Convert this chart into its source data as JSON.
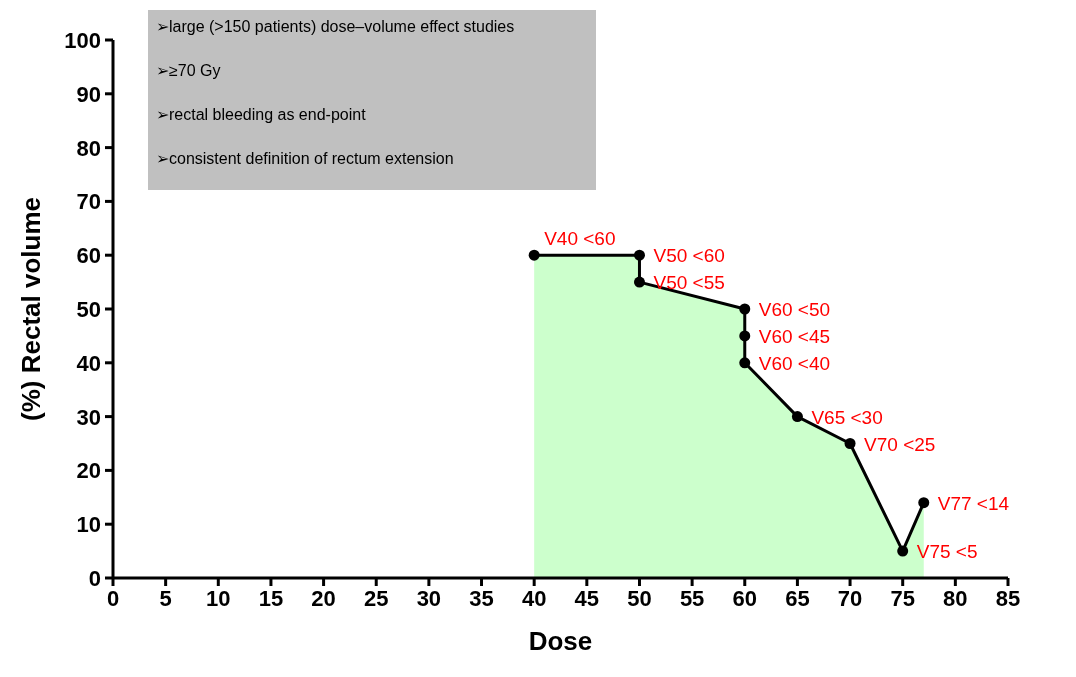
{
  "chart_data": {
    "type": "area",
    "xlabel": "Dose",
    "ylabel": "(%) Rectal volume",
    "xlim": [
      0,
      85
    ],
    "xticks": [
      0,
      5,
      10,
      15,
      20,
      25,
      30,
      35,
      40,
      45,
      50,
      55,
      60,
      65,
      70,
      75,
      80,
      85
    ],
    "ylim": [
      0,
      100
    ],
    "yticks": [
      0,
      10,
      20,
      30,
      40,
      50,
      60,
      70,
      80,
      90,
      100
    ],
    "x": [
      40,
      50,
      50,
      60,
      60,
      60,
      65,
      70,
      75,
      77
    ],
    "series": [
      {
        "color": "#ccffcc",
        "marker": "circle",
        "values": [
          60,
          60,
          55,
          50,
          45,
          40,
          30,
          25,
          5,
          14
        ]
      }
    ],
    "annotations": [
      "➢large (>150 patients) dose–volume effect studies",
      "➢≥70 Gy",
      "➢rectal bleeding as end-point",
      "➢consistent definition of rectum extension",
      {
        "text": "V40 <60",
        "x": 40,
        "y": 60
      },
      {
        "text": "V50 <60",
        "x": 50,
        "y": 60
      },
      {
        "text": "V50 <55",
        "x": 50,
        "y": 55
      },
      {
        "text": "V60 <50",
        "x": 60,
        "y": 50
      },
      {
        "text": "V60 <45",
        "x": 60,
        "y": 45
      },
      {
        "text": "V60 <40",
        "x": 60,
        "y": 40
      },
      {
        "text": "V65 <30",
        "x": 65,
        "y": 30
      },
      {
        "text": "V70 <25",
        "x": 70,
        "y": 25
      },
      {
        "text": "V75 <5",
        "x": 75,
        "y": 5
      },
      {
        "text": "V77 <14",
        "x": 77,
        "y": 14
      }
    ],
    "grid": false
  }
}
